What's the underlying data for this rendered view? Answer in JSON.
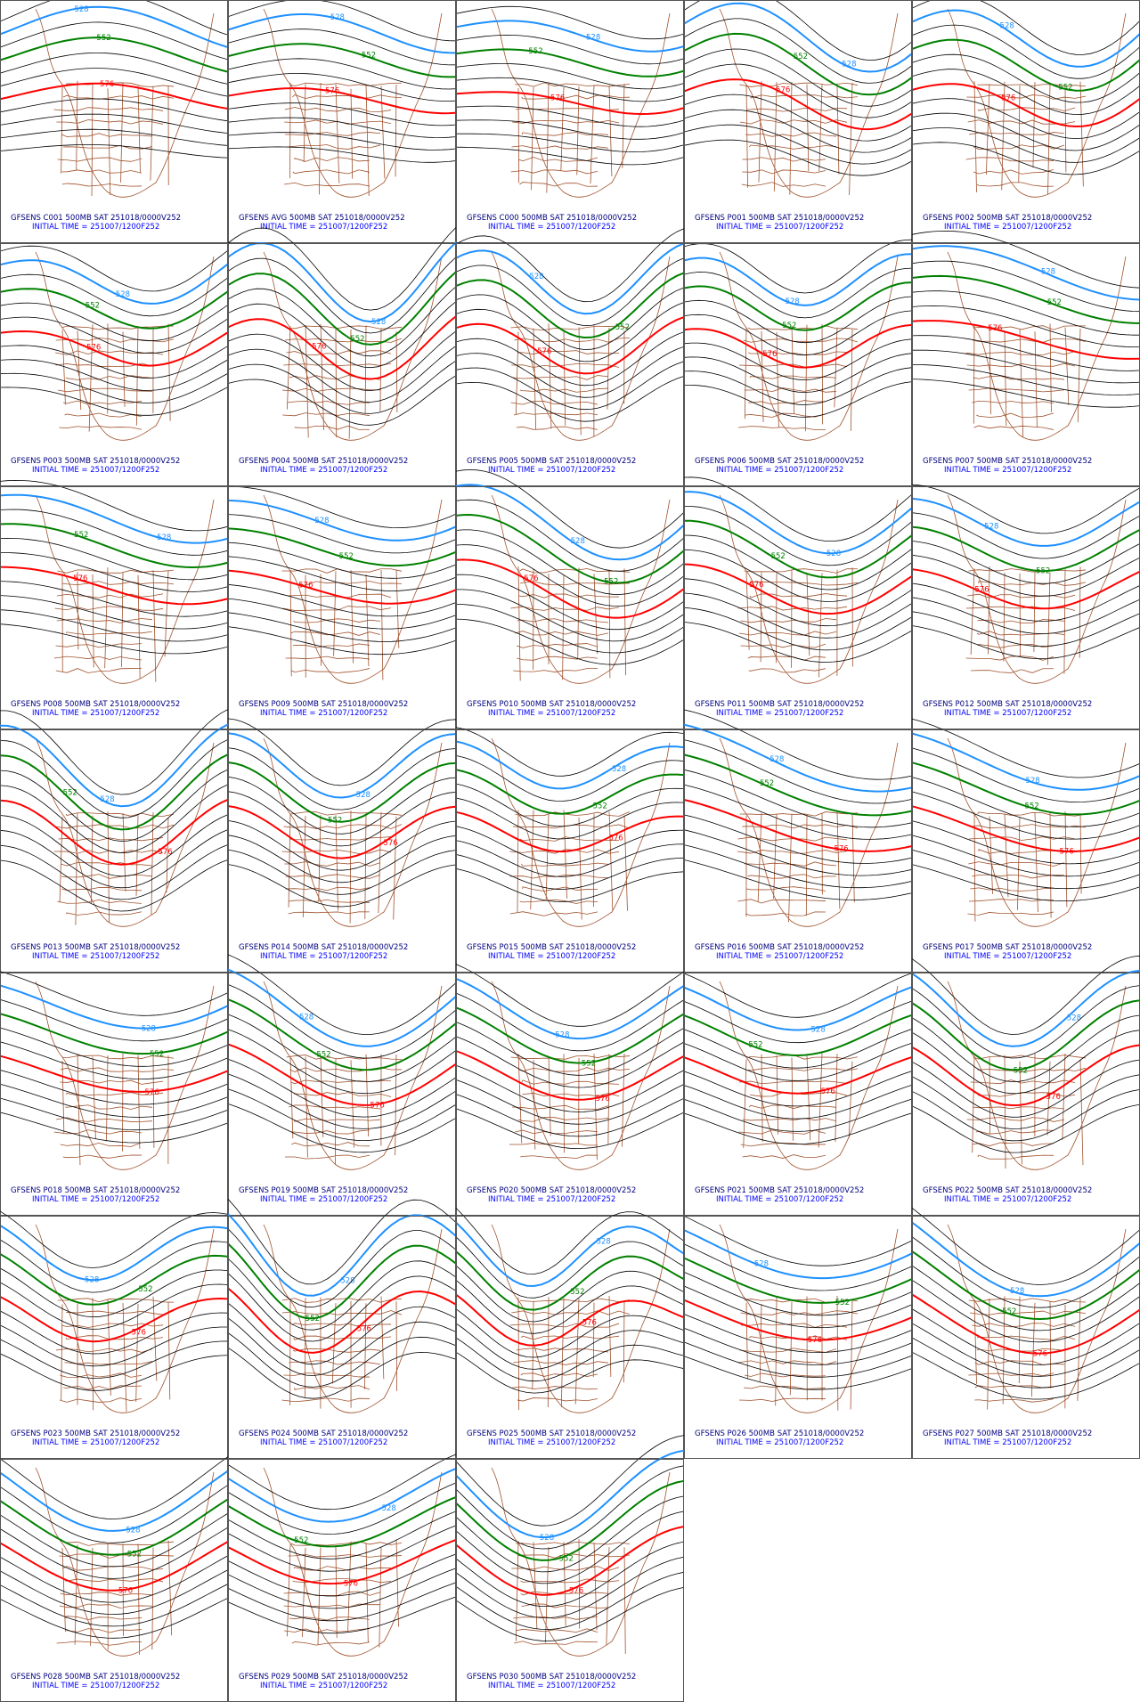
{
  "panels": [
    {
      "title": "GFSENS C001 500MB SAT 251018/0000V252",
      "init": "INITIAL TIME = 251007/1200F252"
    },
    {
      "title": "GFSENS AVG 500MB SAT 251018/0000V252",
      "init": "INITIAL TIME = 251007/1200F252"
    },
    {
      "title": "GFSENS C000 500MB SAT 251018/0000V252",
      "init": "INITIAL TIME = 251007/1200F252"
    },
    {
      "title": "GFSENS P001 500MB SAT 251018/0000V252",
      "init": "INITIAL TIME = 251007/1200F252"
    },
    {
      "title": "GFSENS P002 500MB SAT 251018/0000V252",
      "init": "INITIAL TIME = 251007/1200F252"
    },
    {
      "title": "GFSENS P003 500MB SAT 251018/0000V252",
      "init": "INITIAL TIME = 251007/1200F252"
    },
    {
      "title": "GFSENS P004 500MB SAT 251018/0000V252",
      "init": "INITIAL TIME = 251007/1200F252"
    },
    {
      "title": "GFSENS P005 500MB SAT 251018/0000V252",
      "init": "INITIAL TIME = 251007/1200F252"
    },
    {
      "title": "GFSENS P006 500MB SAT 251018/0000V252",
      "init": "INITIAL TIME = 251007/1200F252"
    },
    {
      "title": "GFSENS P007 500MB SAT 251018/0000V252",
      "init": "INITIAL TIME = 251007/1200F252"
    },
    {
      "title": "GFSENS P008 500MB SAT 251018/0000V252",
      "init": "INITIAL TIME = 251007/1200F252"
    },
    {
      "title": "GFSENS P009 500MB SAT 251018/0000V252",
      "init": "INITIAL TIME = 251007/1200F252"
    },
    {
      "title": "GFSENS P010 500MB SAT 251018/0000V252",
      "init": "INITIAL TIME = 251007/1200F252"
    },
    {
      "title": "GFSENS P011 500MB SAT 251018/0000V252",
      "init": "INITIAL TIME = 251007/1200F252"
    },
    {
      "title": "GFSENS P012 500MB SAT 251018/0000V252",
      "init": "INITIAL TIME = 251007/1200F252"
    },
    {
      "title": "GFSENS P013 500MB SAT 251018/0000V252",
      "init": "INITIAL TIME = 251007/1200F252"
    },
    {
      "title": "GFSENS P014 500MB SAT 251018/0000V252",
      "init": "INITIAL TIME = 251007/1200F252"
    },
    {
      "title": "GFSENS P015 500MB SAT 251018/0000V252",
      "init": "INITIAL TIME = 251007/1200F252"
    },
    {
      "title": "GFSENS P016 500MB SAT 251018/0000V252",
      "init": "INITIAL TIME = 251007/1200F252"
    },
    {
      "title": "GFSENS P017 500MB SAT 251018/0000V252",
      "init": "INITIAL TIME = 251007/1200F252"
    },
    {
      "title": "GFSENS P018 500MB SAT 251018/0000V252",
      "init": "INITIAL TIME = 251007/1200F252"
    },
    {
      "title": "GFSENS P019 500MB SAT 251018/0000V252",
      "init": "INITIAL TIME = 251007/1200F252"
    },
    {
      "title": "GFSENS P020 500MB SAT 251018/0000V252",
      "init": "INITIAL TIME = 251007/1200F252"
    },
    {
      "title": "GFSENS P021 500MB SAT 251018/0000V252",
      "init": "INITIAL TIME = 251007/1200F252"
    },
    {
      "title": "GFSENS P022 500MB SAT 251018/0000V252",
      "init": "INITIAL TIME = 251007/1200F252"
    },
    {
      "title": "GFSENS P023 500MB SAT 251018/0000V252",
      "init": "INITIAL TIME = 251007/1200F252"
    },
    {
      "title": "GFSENS P024 500MB SAT 251018/0000V252",
      "init": "INITIAL TIME = 251007/1200F252"
    },
    {
      "title": "GFSENS P025 500MB SAT 251018/0000V252",
      "init": "INITIAL TIME = 251007/1200F252"
    },
    {
      "title": "GFSENS P026 500MB SAT 251018/0000V252",
      "init": "INITIAL TIME = 251007/1200F252"
    },
    {
      "title": "GFSENS P027 500MB SAT 251018/0000V252",
      "init": "INITIAL TIME = 251007/1200F252"
    },
    {
      "title": "GFSENS P028 500MB SAT 251018/0000V252",
      "init": "INITIAL TIME = 251007/1200F252"
    },
    {
      "title": "GFSENS P029 500MB SAT 251018/0000V252",
      "init": "INITIAL TIME = 251007/1200F252"
    },
    {
      "title": "GFSENS P030 500MB SAT 251018/0000V252",
      "init": "INITIAL TIME = 251007/1200F252"
    }
  ],
  "contour_labels": {
    "blue": "528",
    "green": "552",
    "red": "576"
  }
}
